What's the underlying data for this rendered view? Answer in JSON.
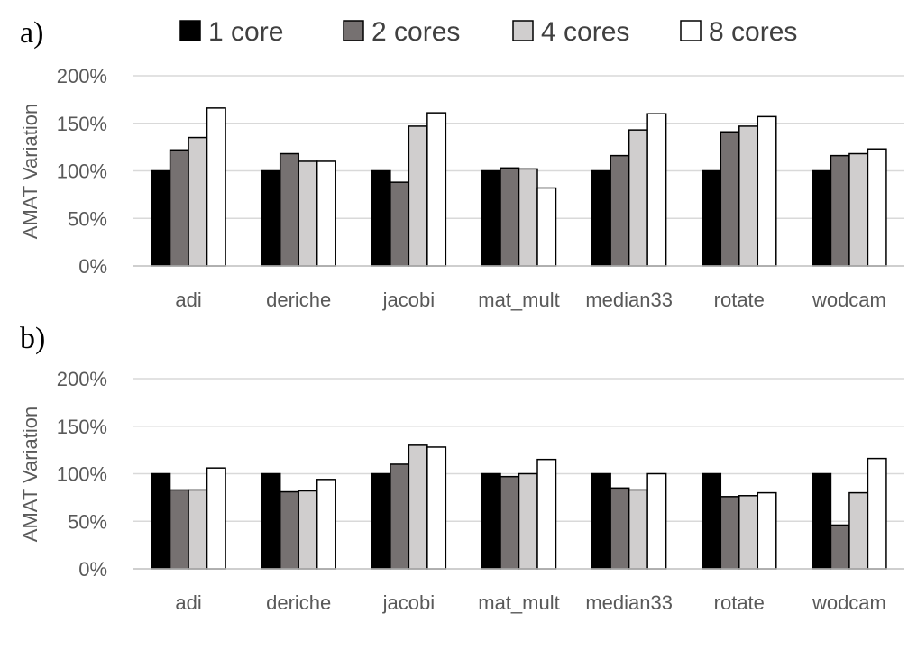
{
  "legend": {
    "position": "top",
    "items": [
      {
        "label": "1 core",
        "color": "#000000"
      },
      {
        "label": "2 cores",
        "color": "#767171"
      },
      {
        "label": "4 cores",
        "color": "#d0cece"
      },
      {
        "label": "8 cores",
        "color": "#ffffff"
      }
    ]
  },
  "chart_data": [
    {
      "type": "bar",
      "panel_label": "a)",
      "ylabel": "AMAT Variation",
      "ylim": [
        0,
        200
      ],
      "yticks": [
        "0%",
        "50%",
        "100%",
        "150%",
        "200%"
      ],
      "grid": true,
      "categories": [
        "adi",
        "deriche",
        "jacobi",
        "mat_mult",
        "median33",
        "rotate",
        "wodcam"
      ],
      "series": [
        {
          "name": "1 core",
          "values": [
            100,
            100,
            100,
            100,
            100,
            100,
            100
          ]
        },
        {
          "name": "2 cores",
          "values": [
            122,
            118,
            88,
            103,
            116,
            141,
            116
          ]
        },
        {
          "name": "4 cores",
          "values": [
            135,
            110,
            147,
            102,
            143,
            147,
            118
          ]
        },
        {
          "name": "8 cores",
          "values": [
            166,
            110,
            161,
            82,
            160,
            157,
            123
          ]
        }
      ]
    },
    {
      "type": "bar",
      "panel_label": "b)",
      "ylabel": "AMAT Variation",
      "ylim": [
        0,
        200
      ],
      "yticks": [
        "0%",
        "50%",
        "100%",
        "150%",
        "200%"
      ],
      "grid": true,
      "categories": [
        "adi",
        "deriche",
        "jacobi",
        "mat_mult",
        "median33",
        "rotate",
        "wodcam"
      ],
      "series": [
        {
          "name": "1 core",
          "values": [
            100,
            100,
            100,
            100,
            100,
            100,
            100
          ]
        },
        {
          "name": "2 cores",
          "values": [
            83,
            81,
            110,
            97,
            85,
            76,
            46
          ]
        },
        {
          "name": "4 cores",
          "values": [
            83,
            82,
            130,
            100,
            83,
            77,
            80
          ]
        },
        {
          "name": "8 cores",
          "values": [
            106,
            94,
            128,
            115,
            100,
            80,
            116
          ]
        }
      ]
    }
  ]
}
